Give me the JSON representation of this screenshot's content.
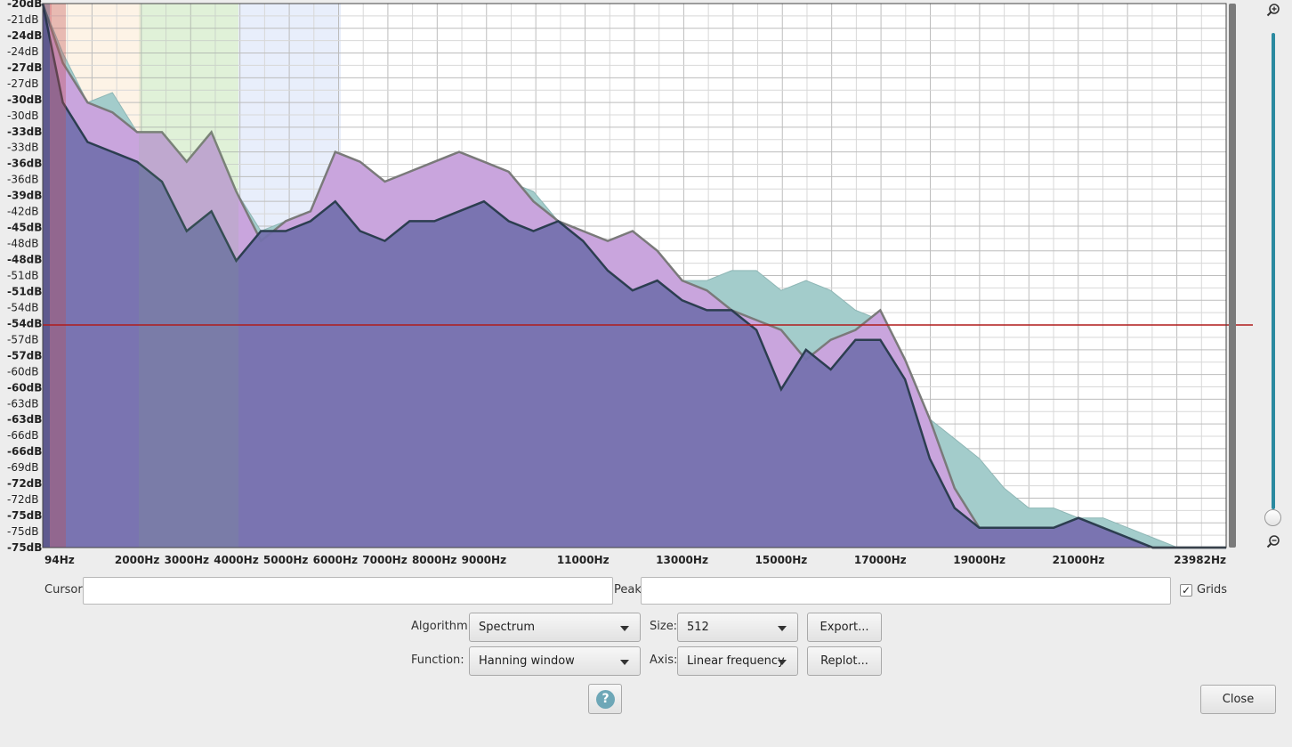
{
  "chart_data": {
    "type": "area",
    "title": "",
    "xlabel": "",
    "ylabel": "",
    "x_tick_labels": [
      "94Hz",
      "2000Hz",
      "3000Hz",
      "4000Hz",
      "5000Hz",
      "6000Hz",
      "7000Hz",
      "8000Hz",
      "9000Hz",
      "11000Hz",
      "13000Hz",
      "15000Hz",
      "17000Hz",
      "19000Hz",
      "21000Hz",
      "23982Hz"
    ],
    "y_tick_labels": [
      "-20dB",
      "-21dB",
      "-24dB",
      "-24dB",
      "-27dB",
      "-27dB",
      "-30dB",
      "-30dB",
      "-33dB",
      "-33dB",
      "-36dB",
      "-36dB",
      "-39dB",
      "-42dB",
      "-45dB",
      "-48dB",
      "-48dB",
      "-51dB",
      "-51dB",
      "-54dB",
      "-54dB",
      "-57dB",
      "-57dB",
      "-60dB",
      "-60dB",
      "-63dB",
      "-63dB",
      "-66dB",
      "-66dB",
      "-69dB",
      "-72dB",
      "-72dB",
      "-75dB",
      "-75dB",
      "-75dB"
    ],
    "xlim": [
      94,
      23982
    ],
    "ylim": [
      -75,
      -20
    ],
    "grid": true,
    "reference_line_db": -52.5,
    "colors": {
      "teal_area": "#a3cccb",
      "violet_area": "#c9a5dd",
      "blue_area": "#7370ac",
      "reference_line": "#b01c1c"
    },
    "series": [
      {
        "color": "teal",
        "x": [
          94,
          500,
          1000,
          1500,
          2000,
          2500,
          3000,
          3500,
          4000,
          4500,
          5000,
          5500,
          6000,
          6500,
          7000,
          7500,
          8000,
          8500,
          9000,
          9500,
          10000,
          10500,
          11000,
          11500,
          12000,
          12500,
          13000,
          13500,
          14000,
          14500,
          15000,
          15500,
          16000,
          16500,
          17000,
          17500,
          18000,
          18500,
          19000,
          19500,
          20000,
          20500,
          21000,
          21500,
          22000,
          22500,
          23000,
          23500,
          23982
        ],
        "y": [
          -20,
          -25,
          -30,
          -29,
          -33,
          -33,
          -36,
          -34,
          -39,
          -43,
          -42,
          -41,
          -35,
          -36,
          -38,
          -37,
          -36,
          -35,
          -37,
          -38,
          -39,
          -42,
          -43,
          -45,
          -44,
          -46,
          -48,
          -48,
          -47,
          -47,
          -49,
          -48,
          -49,
          -51,
          -52,
          -58,
          -62,
          -64,
          -66,
          -69,
          -71,
          -71,
          -72,
          -72,
          -73,
          -74,
          -75,
          -75,
          -75
        ]
      },
      {
        "color": "violet",
        "x": [
          94,
          500,
          1000,
          1500,
          2000,
          2500,
          3000,
          3500,
          4000,
          4500,
          5000,
          5500,
          6000,
          6500,
          7000,
          7500,
          8000,
          8500,
          9000,
          9500,
          10000,
          10500,
          11000,
          11500,
          12000,
          12500,
          13000,
          13500,
          14000,
          14500,
          15000,
          15500,
          16000,
          16500,
          17000,
          17500,
          18000,
          18500,
          19000,
          19500,
          20000,
          20500,
          21000,
          21500,
          22000,
          22500,
          23000,
          23500,
          23982
        ],
        "y": [
          -20,
          -26,
          -30,
          -31,
          -33,
          -33,
          -36,
          -33,
          -39,
          -44,
          -42,
          -41,
          -35,
          -36,
          -38,
          -37,
          -36,
          -35,
          -36,
          -37,
          -40,
          -42,
          -43,
          -44,
          -43,
          -45,
          -48,
          -49,
          -51,
          -52,
          -53,
          -56,
          -54,
          -53,
          -51,
          -56,
          -62,
          -69,
          -73,
          -73,
          -73,
          -73,
          -72,
          -73,
          -74,
          -75,
          -75,
          -75,
          -75
        ]
      },
      {
        "color": "blue",
        "x": [
          94,
          500,
          1000,
          1500,
          2000,
          2500,
          3000,
          3500,
          4000,
          4500,
          5000,
          5500,
          6000,
          6500,
          7000,
          7500,
          8000,
          8500,
          9000,
          9500,
          10000,
          10500,
          11000,
          11500,
          12000,
          12500,
          13000,
          13500,
          14000,
          14500,
          15000,
          15500,
          16000,
          16500,
          17000,
          17500,
          18000,
          18500,
          19000,
          19500,
          20000,
          20500,
          21000,
          21500,
          22000,
          22500,
          23000,
          23500,
          23982
        ],
        "y": [
          -20,
          -30,
          -34,
          -35,
          -36,
          -38,
          -43,
          -41,
          -46,
          -43,
          -43,
          -42,
          -40,
          -43,
          -44,
          -42,
          -42,
          -41,
          -40,
          -42,
          -43,
          -42,
          -44,
          -47,
          -49,
          -48,
          -50,
          -51,
          -51,
          -53,
          -59,
          -55,
          -57,
          -54,
          -54,
          -58,
          -66,
          -71,
          -73,
          -73,
          -73,
          -73,
          -72,
          -73,
          -74,
          -75,
          -75,
          -75,
          -75
        ]
      }
    ]
  },
  "controls": {
    "cursor_label": "Cursor:",
    "cursor_value": "",
    "peak_label": "Peak:",
    "peak_value": "",
    "grids_label": "Grids",
    "grids_checked": "✓",
    "algorithm_label": "Algorithm:",
    "algorithm_value": "Spectrum",
    "size_label": "Size:",
    "size_value": "512",
    "export_label": "Export...",
    "function_label": "Function:",
    "function_value": "Hanning window",
    "axis_label": "Axis:",
    "axis_value": "Linear frequency",
    "replot_label": "Replot...",
    "help_label": "?",
    "close_label": "Close"
  },
  "icons": {
    "zoom_in": "zoom-in-icon",
    "zoom_out": "zoom-out-icon",
    "help": "help-icon"
  }
}
